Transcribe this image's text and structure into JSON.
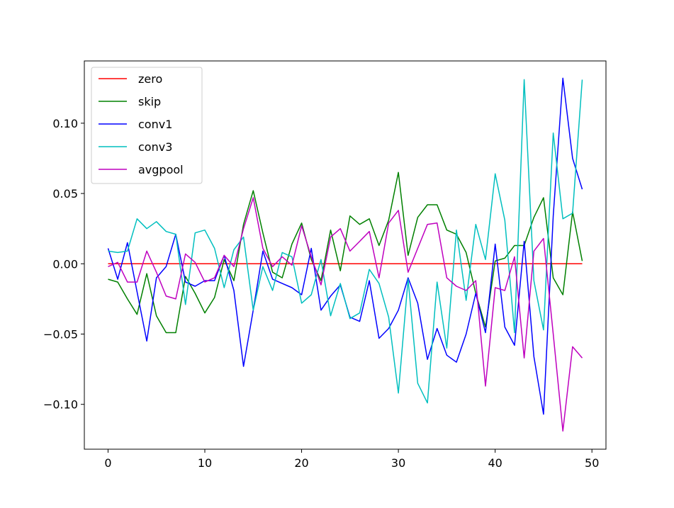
{
  "chart_data": {
    "type": "line",
    "title": "",
    "xlabel": "",
    "ylabel": "",
    "xlim": [
      -2.45,
      51.45
    ],
    "ylim": [
      -0.1319,
      0.1443
    ],
    "x_ticks": [
      0,
      10,
      20,
      30,
      40,
      50
    ],
    "x_tick_labels": [
      "0",
      "10",
      "20",
      "30",
      "40",
      "50"
    ],
    "y_ticks": [
      -0.1,
      -0.05,
      0.0,
      0.05,
      0.1
    ],
    "y_tick_labels": [
      "−0.10",
      "−0.05",
      "0.00",
      "0.05",
      "0.10"
    ],
    "grid": false,
    "legend_position": "top-left",
    "x": [
      0,
      1,
      2,
      3,
      4,
      5,
      6,
      7,
      8,
      9,
      10,
      11,
      12,
      13,
      14,
      15,
      16,
      17,
      18,
      19,
      20,
      21,
      22,
      23,
      24,
      25,
      26,
      27,
      28,
      29,
      30,
      31,
      32,
      33,
      34,
      35,
      36,
      37,
      38,
      39,
      40,
      41,
      42,
      43,
      44,
      45,
      46,
      47,
      48,
      49
    ],
    "series": [
      {
        "name": "zero",
        "color": "#ff0000",
        "values": [
          0,
          0,
          0,
          0,
          0,
          0,
          0,
          0,
          0,
          0,
          0,
          0,
          0,
          0,
          0,
          0,
          0,
          0,
          0,
          0,
          0,
          0,
          0,
          0,
          0,
          0,
          0,
          0,
          0,
          0,
          0,
          0,
          0,
          0,
          0,
          0,
          0,
          0,
          0,
          0,
          0,
          0,
          0,
          0,
          0,
          0,
          0,
          0,
          0,
          0
        ]
      },
      {
        "name": "skip",
        "color": "#008000",
        "values": [
          -0.011,
          -0.013,
          -0.025,
          -0.036,
          -0.007,
          -0.037,
          -0.049,
          -0.049,
          -0.009,
          -0.021,
          -0.035,
          -0.024,
          0.003,
          -0.012,
          0.028,
          0.052,
          0.022,
          -0.006,
          -0.01,
          0.014,
          0.029,
          0.003,
          -0.012,
          0.024,
          -0.005,
          0.034,
          0.028,
          0.032,
          0.013,
          0.031,
          0.065,
          0.006,
          0.033,
          0.042,
          0.042,
          0.024,
          0.021,
          0.008,
          -0.021,
          -0.045,
          0.002,
          0.004,
          0.013,
          0.013,
          0.033,
          0.047,
          -0.01,
          -0.022,
          0.037,
          0.002
        ]
      },
      {
        "name": "conv1",
        "color": "#0000ff",
        "values": [
          0.011,
          -0.011,
          0.015,
          -0.02,
          -0.055,
          -0.01,
          -0.002,
          0.021,
          -0.013,
          -0.016,
          -0.012,
          -0.012,
          0.006,
          -0.019,
          -0.073,
          -0.033,
          0.009,
          -0.011,
          -0.014,
          -0.017,
          -0.022,
          0.011,
          -0.033,
          -0.023,
          -0.015,
          -0.038,
          -0.041,
          -0.012,
          -0.053,
          -0.046,
          -0.033,
          -0.01,
          -0.028,
          -0.068,
          -0.046,
          -0.065,
          -0.07,
          -0.05,
          -0.021,
          -0.049,
          0.014,
          -0.045,
          -0.058,
          0.016,
          -0.066,
          -0.107,
          0.034,
          0.132,
          0.075,
          0.053
        ]
      },
      {
        "name": "conv3",
        "color": "#00bfbf",
        "values": [
          0.009,
          0.008,
          0.009,
          0.032,
          0.025,
          0.03,
          0.023,
          0.021,
          -0.029,
          0.022,
          0.024,
          0.011,
          -0.017,
          0.01,
          0.019,
          -0.033,
          -0.002,
          -0.019,
          0.008,
          0.005,
          -0.028,
          -0.022,
          0.003,
          -0.037,
          -0.014,
          -0.039,
          -0.035,
          -0.004,
          -0.014,
          -0.038,
          -0.092,
          -0.011,
          -0.085,
          -0.099,
          -0.013,
          -0.06,
          0.024,
          -0.026,
          0.028,
          0.003,
          0.064,
          0.031,
          -0.049,
          0.131,
          -0.012,
          -0.047,
          0.093,
          0.032,
          0.036,
          0.131
        ]
      },
      {
        "name": "avgpool",
        "color": "#bf00bf",
        "values": [
          -0.002,
          0.001,
          -0.013,
          -0.013,
          0.009,
          -0.006,
          -0.023,
          -0.025,
          0.007,
          0.001,
          -0.013,
          -0.01,
          0.006,
          -0.002,
          0.025,
          0.047,
          0.011,
          -0.002,
          0.005,
          -0.001,
          0.027,
          0.005,
          -0.015,
          0.019,
          0.025,
          0.009,
          0.016,
          0.023,
          -0.01,
          0.029,
          0.038,
          -0.006,
          0.011,
          0.028,
          0.029,
          -0.01,
          -0.016,
          -0.019,
          -0.012,
          -0.087,
          -0.017,
          -0.019,
          0.005,
          -0.067,
          0.009,
          0.018,
          -0.05,
          -0.119,
          -0.059,
          -0.067
        ]
      }
    ]
  }
}
